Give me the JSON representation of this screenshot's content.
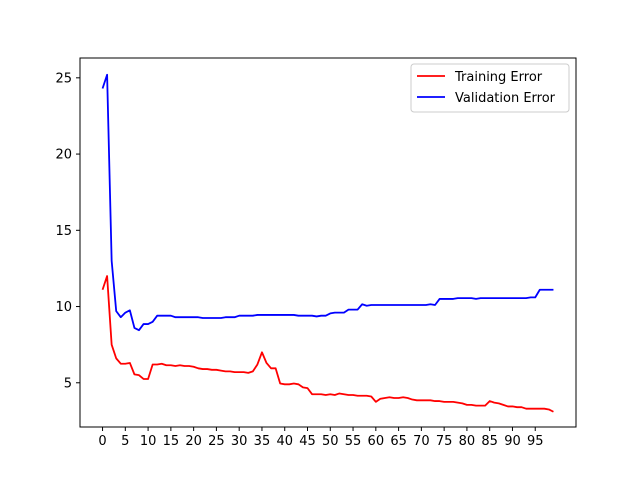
{
  "chart_data": {
    "type": "line",
    "title": "",
    "xlabel": "",
    "ylabel": "",
    "xlim": [
      -4.95,
      103.95
    ],
    "ylim": [
      2.1,
      26.3
    ],
    "x_ticks": [
      0,
      5,
      10,
      15,
      20,
      25,
      30,
      35,
      40,
      45,
      50,
      55,
      60,
      65,
      70,
      75,
      80,
      85,
      90,
      95
    ],
    "y_ticks": [
      5,
      10,
      15,
      20,
      25
    ],
    "grid": false,
    "legend_position": "top-right",
    "series": [
      {
        "name": "Training Error",
        "color": "#ff0000",
        "x": [
          0,
          1,
          2,
          3,
          4,
          5,
          6,
          7,
          8,
          9,
          10,
          11,
          12,
          13,
          14,
          15,
          16,
          17,
          18,
          19,
          20,
          21,
          22,
          23,
          24,
          25,
          26,
          27,
          28,
          29,
          30,
          31,
          32,
          33,
          34,
          35,
          36,
          37,
          38,
          39,
          40,
          41,
          42,
          43,
          44,
          45,
          46,
          47,
          48,
          49,
          50,
          51,
          52,
          53,
          54,
          55,
          56,
          57,
          58,
          59,
          60,
          61,
          62,
          63,
          64,
          65,
          66,
          67,
          68,
          69,
          70,
          71,
          72,
          73,
          74,
          75,
          76,
          77,
          78,
          79,
          80,
          81,
          82,
          83,
          84,
          85,
          86,
          87,
          88,
          89,
          90,
          91,
          92,
          93,
          94,
          95,
          96,
          97,
          98,
          99
        ],
        "values": [
          11.1,
          12.0,
          7.5,
          6.6,
          6.25,
          6.25,
          6.3,
          5.55,
          5.5,
          5.25,
          5.25,
          6.2,
          6.2,
          6.25,
          6.15,
          6.15,
          6.1,
          6.15,
          6.1,
          6.1,
          6.05,
          5.95,
          5.9,
          5.9,
          5.85,
          5.85,
          5.8,
          5.75,
          5.75,
          5.7,
          5.7,
          5.7,
          5.65,
          5.75,
          6.2,
          7.0,
          6.3,
          5.95,
          5.95,
          4.95,
          4.9,
          4.9,
          4.95,
          4.9,
          4.7,
          4.65,
          4.25,
          4.25,
          4.25,
          4.2,
          4.25,
          4.2,
          4.3,
          4.25,
          4.2,
          4.2,
          4.15,
          4.15,
          4.15,
          4.1,
          3.75,
          3.95,
          4.0,
          4.05,
          4.0,
          4.0,
          4.05,
          4.0,
          3.9,
          3.85,
          3.85,
          3.85,
          3.85,
          3.8,
          3.8,
          3.75,
          3.75,
          3.75,
          3.7,
          3.65,
          3.55,
          3.55,
          3.5,
          3.5,
          3.5,
          3.8,
          3.7,
          3.65,
          3.55,
          3.45,
          3.45,
          3.4,
          3.4,
          3.3,
          3.3,
          3.3,
          3.3,
          3.3,
          3.25,
          3.1
        ]
      },
      {
        "name": "Validation Error",
        "color": "#0000ff",
        "x": [
          0,
          1,
          2,
          3,
          4,
          5,
          6,
          7,
          8,
          9,
          10,
          11,
          12,
          13,
          14,
          15,
          16,
          17,
          18,
          19,
          20,
          21,
          22,
          23,
          24,
          25,
          26,
          27,
          28,
          29,
          30,
          31,
          32,
          33,
          34,
          35,
          36,
          37,
          38,
          39,
          40,
          41,
          42,
          43,
          44,
          45,
          46,
          47,
          48,
          49,
          50,
          51,
          52,
          53,
          54,
          55,
          56,
          57,
          58,
          59,
          60,
          61,
          62,
          63,
          64,
          65,
          66,
          67,
          68,
          69,
          70,
          71,
          72,
          73,
          74,
          75,
          76,
          77,
          78,
          79,
          80,
          81,
          82,
          83,
          84,
          85,
          86,
          87,
          88,
          89,
          90,
          91,
          92,
          93,
          94,
          95,
          96,
          97,
          98,
          99
        ],
        "values": [
          24.3,
          25.2,
          13.0,
          9.7,
          9.3,
          9.6,
          9.75,
          8.6,
          8.45,
          8.85,
          8.85,
          9.0,
          9.4,
          9.4,
          9.4,
          9.4,
          9.3,
          9.3,
          9.3,
          9.3,
          9.3,
          9.3,
          9.25,
          9.25,
          9.25,
          9.25,
          9.25,
          9.3,
          9.3,
          9.3,
          9.4,
          9.4,
          9.4,
          9.4,
          9.45,
          9.45,
          9.45,
          9.45,
          9.45,
          9.45,
          9.45,
          9.45,
          9.45,
          9.4,
          9.4,
          9.4,
          9.4,
          9.35,
          9.4,
          9.4,
          9.55,
          9.6,
          9.6,
          9.6,
          9.8,
          9.8,
          9.8,
          10.15,
          10.05,
          10.1,
          10.1,
          10.1,
          10.1,
          10.1,
          10.1,
          10.1,
          10.1,
          10.1,
          10.1,
          10.1,
          10.1,
          10.1,
          10.15,
          10.1,
          10.5,
          10.5,
          10.5,
          10.5,
          10.55,
          10.55,
          10.55,
          10.55,
          10.5,
          10.55,
          10.55,
          10.55,
          10.55,
          10.55,
          10.55,
          10.55,
          10.55,
          10.55,
          10.55,
          10.55,
          10.6,
          10.6,
          11.1,
          11.1,
          11.1,
          11.1
        ]
      }
    ]
  }
}
